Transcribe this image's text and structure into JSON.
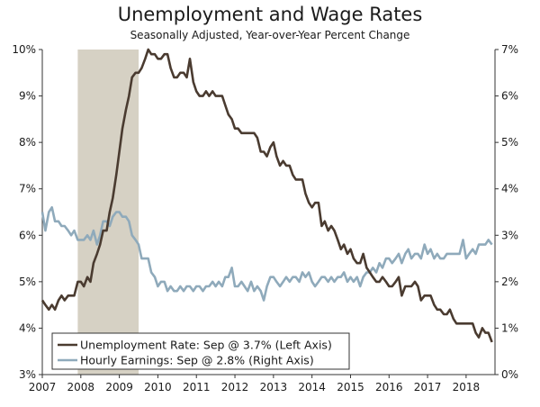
{
  "chart_data": {
    "type": "line",
    "title": "Unemployment and Wage Rates",
    "subtitle": "Seasonally Adjusted, Year-over-Year Percent Change",
    "xlim": [
      2007.0,
      2018.75
    ],
    "x_ticks": [
      "2007",
      "2008",
      "2009",
      "2010",
      "2011",
      "2012",
      "2013",
      "2014",
      "2015",
      "2016",
      "2017",
      "2018"
    ],
    "left_axis": {
      "ylim": [
        3,
        10
      ],
      "ticks": [
        "3%",
        "4%",
        "5%",
        "6%",
        "7%",
        "8%",
        "9%",
        "10%"
      ]
    },
    "right_axis": {
      "ylim": [
        0,
        7
      ],
      "ticks": [
        "0%",
        "1%",
        "2%",
        "3%",
        "4%",
        "5%",
        "6%",
        "7%"
      ]
    },
    "recession": {
      "start": 2007.92,
      "end": 2009.5
    },
    "legend_position": "bottom-left",
    "colors": {
      "unemployment": "#4a3b30",
      "earnings": "#8faabb",
      "recession": "#d6d1c4"
    },
    "series": [
      {
        "name": "Unemployment Rate: Sep @ 3.7% (Left Axis)",
        "axis": "left",
        "points": [
          [
            2007.0,
            4.6
          ],
          [
            2007.08,
            4.5
          ],
          [
            2007.17,
            4.4
          ],
          [
            2007.25,
            4.5
          ],
          [
            2007.33,
            4.4
          ],
          [
            2007.42,
            4.6
          ],
          [
            2007.5,
            4.7
          ],
          [
            2007.58,
            4.6
          ],
          [
            2007.67,
            4.7
          ],
          [
            2007.75,
            4.7
          ],
          [
            2007.83,
            4.7
          ],
          [
            2007.92,
            5.0
          ],
          [
            2008.0,
            5.0
          ],
          [
            2008.08,
            4.9
          ],
          [
            2008.17,
            5.1
          ],
          [
            2008.25,
            5.0
          ],
          [
            2008.33,
            5.4
          ],
          [
            2008.42,
            5.6
          ],
          [
            2008.5,
            5.8
          ],
          [
            2008.58,
            6.1
          ],
          [
            2008.67,
            6.1
          ],
          [
            2008.75,
            6.5
          ],
          [
            2008.83,
            6.8
          ],
          [
            2008.92,
            7.3
          ],
          [
            2009.0,
            7.8
          ],
          [
            2009.08,
            8.3
          ],
          [
            2009.17,
            8.7
          ],
          [
            2009.25,
            9.0
          ],
          [
            2009.33,
            9.4
          ],
          [
            2009.42,
            9.5
          ],
          [
            2009.5,
            9.5
          ],
          [
            2009.58,
            9.6
          ],
          [
            2009.67,
            9.8
          ],
          [
            2009.75,
            10.0
          ],
          [
            2009.83,
            9.9
          ],
          [
            2009.92,
            9.9
          ],
          [
            2010.0,
            9.8
          ],
          [
            2010.08,
            9.8
          ],
          [
            2010.17,
            9.9
          ],
          [
            2010.25,
            9.9
          ],
          [
            2010.33,
            9.6
          ],
          [
            2010.42,
            9.4
          ],
          [
            2010.5,
            9.4
          ],
          [
            2010.58,
            9.5
          ],
          [
            2010.67,
            9.5
          ],
          [
            2010.75,
            9.4
          ],
          [
            2010.83,
            9.8
          ],
          [
            2010.92,
            9.3
          ],
          [
            2011.0,
            9.1
          ],
          [
            2011.08,
            9.0
          ],
          [
            2011.17,
            9.0
          ],
          [
            2011.25,
            9.1
          ],
          [
            2011.33,
            9.0
          ],
          [
            2011.42,
            9.1
          ],
          [
            2011.5,
            9.0
          ],
          [
            2011.58,
            9.0
          ],
          [
            2011.67,
            9.0
          ],
          [
            2011.75,
            8.8
          ],
          [
            2011.83,
            8.6
          ],
          [
            2011.92,
            8.5
          ],
          [
            2012.0,
            8.3
          ],
          [
            2012.08,
            8.3
          ],
          [
            2012.17,
            8.2
          ],
          [
            2012.25,
            8.2
          ],
          [
            2012.33,
            8.2
          ],
          [
            2012.42,
            8.2
          ],
          [
            2012.5,
            8.2
          ],
          [
            2012.58,
            8.1
          ],
          [
            2012.67,
            7.8
          ],
          [
            2012.75,
            7.8
          ],
          [
            2012.83,
            7.7
          ],
          [
            2012.92,
            7.9
          ],
          [
            2013.0,
            8.0
          ],
          [
            2013.08,
            7.7
          ],
          [
            2013.17,
            7.5
          ],
          [
            2013.25,
            7.6
          ],
          [
            2013.33,
            7.5
          ],
          [
            2013.42,
            7.5
          ],
          [
            2013.5,
            7.3
          ],
          [
            2013.58,
            7.2
          ],
          [
            2013.67,
            7.2
          ],
          [
            2013.75,
            7.2
          ],
          [
            2013.83,
            6.9
          ],
          [
            2013.92,
            6.7
          ],
          [
            2014.0,
            6.6
          ],
          [
            2014.08,
            6.7
          ],
          [
            2014.17,
            6.7
          ],
          [
            2014.25,
            6.2
          ],
          [
            2014.33,
            6.3
          ],
          [
            2014.42,
            6.1
          ],
          [
            2014.5,
            6.2
          ],
          [
            2014.58,
            6.1
          ],
          [
            2014.67,
            5.9
          ],
          [
            2014.75,
            5.7
          ],
          [
            2014.83,
            5.8
          ],
          [
            2014.92,
            5.6
          ],
          [
            2015.0,
            5.7
          ],
          [
            2015.08,
            5.5
          ],
          [
            2015.17,
            5.4
          ],
          [
            2015.25,
            5.4
          ],
          [
            2015.33,
            5.6
          ],
          [
            2015.42,
            5.3
          ],
          [
            2015.5,
            5.2
          ],
          [
            2015.58,
            5.1
          ],
          [
            2015.67,
            5.0
          ],
          [
            2015.75,
            5.0
          ],
          [
            2015.83,
            5.1
          ],
          [
            2015.92,
            5.0
          ],
          [
            2016.0,
            4.9
          ],
          [
            2016.08,
            4.9
          ],
          [
            2016.17,
            5.0
          ],
          [
            2016.25,
            5.1
          ],
          [
            2016.33,
            4.7
          ],
          [
            2016.42,
            4.9
          ],
          [
            2016.5,
            4.9
          ],
          [
            2016.58,
            4.9
          ],
          [
            2016.67,
            5.0
          ],
          [
            2016.75,
            4.9
          ],
          [
            2016.83,
            4.6
          ],
          [
            2016.92,
            4.7
          ],
          [
            2017.0,
            4.7
          ],
          [
            2017.08,
            4.7
          ],
          [
            2017.17,
            4.5
          ],
          [
            2017.25,
            4.4
          ],
          [
            2017.33,
            4.4
          ],
          [
            2017.42,
            4.3
          ],
          [
            2017.5,
            4.3
          ],
          [
            2017.58,
            4.4
          ],
          [
            2017.67,
            4.2
          ],
          [
            2017.75,
            4.1
          ],
          [
            2017.83,
            4.1
          ],
          [
            2017.92,
            4.1
          ],
          [
            2018.0,
            4.1
          ],
          [
            2018.08,
            4.1
          ],
          [
            2018.17,
            4.1
          ],
          [
            2018.25,
            3.9
          ],
          [
            2018.33,
            3.8
          ],
          [
            2018.42,
            4.0
          ],
          [
            2018.5,
            3.9
          ],
          [
            2018.58,
            3.9
          ],
          [
            2018.67,
            3.7
          ]
        ]
      },
      {
        "name": "Hourly Earnings: Sep @ 2.8% (Right Axis)",
        "axis": "right",
        "points": [
          [
            2007.0,
            3.5
          ],
          [
            2007.08,
            3.1
          ],
          [
            2007.17,
            3.5
          ],
          [
            2007.25,
            3.6
          ],
          [
            2007.33,
            3.3
          ],
          [
            2007.42,
            3.3
          ],
          [
            2007.5,
            3.2
          ],
          [
            2007.58,
            3.2
          ],
          [
            2007.67,
            3.1
          ],
          [
            2007.75,
            3.0
          ],
          [
            2007.83,
            3.1
          ],
          [
            2007.92,
            2.9
          ],
          [
            2008.0,
            2.9
          ],
          [
            2008.08,
            2.9
          ],
          [
            2008.17,
            3.0
          ],
          [
            2008.25,
            2.9
          ],
          [
            2008.33,
            3.1
          ],
          [
            2008.42,
            2.8
          ],
          [
            2008.5,
            3.0
          ],
          [
            2008.58,
            3.3
          ],
          [
            2008.67,
            3.3
          ],
          [
            2008.75,
            3.2
          ],
          [
            2008.83,
            3.4
          ],
          [
            2008.92,
            3.5
          ],
          [
            2009.0,
            3.5
          ],
          [
            2009.08,
            3.4
          ],
          [
            2009.17,
            3.4
          ],
          [
            2009.25,
            3.3
          ],
          [
            2009.33,
            3.0
          ],
          [
            2009.42,
            2.9
          ],
          [
            2009.5,
            2.8
          ],
          [
            2009.58,
            2.5
          ],
          [
            2009.67,
            2.5
          ],
          [
            2009.75,
            2.5
          ],
          [
            2009.83,
            2.2
          ],
          [
            2009.92,
            2.1
          ],
          [
            2010.0,
            1.9
          ],
          [
            2010.08,
            2.0
          ],
          [
            2010.17,
            2.0
          ],
          [
            2010.25,
            1.8
          ],
          [
            2010.33,
            1.9
          ],
          [
            2010.42,
            1.8
          ],
          [
            2010.5,
            1.8
          ],
          [
            2010.58,
            1.9
          ],
          [
            2010.67,
            1.8
          ],
          [
            2010.75,
            1.9
          ],
          [
            2010.83,
            1.9
          ],
          [
            2010.92,
            1.8
          ],
          [
            2011.0,
            1.9
          ],
          [
            2011.08,
            1.9
          ],
          [
            2011.17,
            1.8
          ],
          [
            2011.25,
            1.9
          ],
          [
            2011.33,
            1.9
          ],
          [
            2011.42,
            2.0
          ],
          [
            2011.5,
            1.9
          ],
          [
            2011.58,
            2.0
          ],
          [
            2011.67,
            1.9
          ],
          [
            2011.75,
            2.1
          ],
          [
            2011.83,
            2.1
          ],
          [
            2011.92,
            2.3
          ],
          [
            2012.0,
            1.9
          ],
          [
            2012.08,
            1.9
          ],
          [
            2012.17,
            2.0
          ],
          [
            2012.25,
            1.9
          ],
          [
            2012.33,
            1.8
          ],
          [
            2012.42,
            2.0
          ],
          [
            2012.5,
            1.8
          ],
          [
            2012.58,
            1.9
          ],
          [
            2012.67,
            1.8
          ],
          [
            2012.75,
            1.6
          ],
          [
            2012.83,
            1.9
          ],
          [
            2012.92,
            2.1
          ],
          [
            2013.0,
            2.1
          ],
          [
            2013.08,
            2.0
          ],
          [
            2013.17,
            1.9
          ],
          [
            2013.25,
            2.0
          ],
          [
            2013.33,
            2.1
          ],
          [
            2013.42,
            2.0
          ],
          [
            2013.5,
            2.1
          ],
          [
            2013.58,
            2.1
          ],
          [
            2013.67,
            2.0
          ],
          [
            2013.75,
            2.2
          ],
          [
            2013.83,
            2.1
          ],
          [
            2013.92,
            2.2
          ],
          [
            2014.0,
            2.0
          ],
          [
            2014.08,
            1.9
          ],
          [
            2014.17,
            2.0
          ],
          [
            2014.25,
            2.1
          ],
          [
            2014.33,
            2.1
          ],
          [
            2014.42,
            2.0
          ],
          [
            2014.5,
            2.1
          ],
          [
            2014.58,
            2.0
          ],
          [
            2014.67,
            2.1
          ],
          [
            2014.75,
            2.1
          ],
          [
            2014.83,
            2.2
          ],
          [
            2014.92,
            2.0
          ],
          [
            2015.0,
            2.1
          ],
          [
            2015.08,
            2.0
          ],
          [
            2015.17,
            2.1
          ],
          [
            2015.25,
            1.9
          ],
          [
            2015.33,
            2.1
          ],
          [
            2015.42,
            2.2
          ],
          [
            2015.5,
            2.2
          ],
          [
            2015.58,
            2.3
          ],
          [
            2015.67,
            2.2
          ],
          [
            2015.75,
            2.4
          ],
          [
            2015.83,
            2.3
          ],
          [
            2015.92,
            2.5
          ],
          [
            2016.0,
            2.5
          ],
          [
            2016.08,
            2.4
          ],
          [
            2016.17,
            2.5
          ],
          [
            2016.25,
            2.6
          ],
          [
            2016.33,
            2.4
          ],
          [
            2016.42,
            2.6
          ],
          [
            2016.5,
            2.7
          ],
          [
            2016.58,
            2.5
          ],
          [
            2016.67,
            2.6
          ],
          [
            2016.75,
            2.6
          ],
          [
            2016.83,
            2.5
          ],
          [
            2016.92,
            2.8
          ],
          [
            2017.0,
            2.6
          ],
          [
            2017.08,
            2.7
          ],
          [
            2017.17,
            2.5
          ],
          [
            2017.25,
            2.6
          ],
          [
            2017.33,
            2.5
          ],
          [
            2017.42,
            2.5
          ],
          [
            2017.5,
            2.6
          ],
          [
            2017.58,
            2.6
          ],
          [
            2017.67,
            2.6
          ],
          [
            2017.75,
            2.6
          ],
          [
            2017.83,
            2.6
          ],
          [
            2017.92,
            2.9
          ],
          [
            2018.0,
            2.5
          ],
          [
            2018.08,
            2.6
          ],
          [
            2018.17,
            2.7
          ],
          [
            2018.25,
            2.6
          ],
          [
            2018.33,
            2.8
          ],
          [
            2018.42,
            2.8
          ],
          [
            2018.5,
            2.8
          ],
          [
            2018.58,
            2.9
          ],
          [
            2018.67,
            2.8
          ]
        ]
      }
    ]
  }
}
